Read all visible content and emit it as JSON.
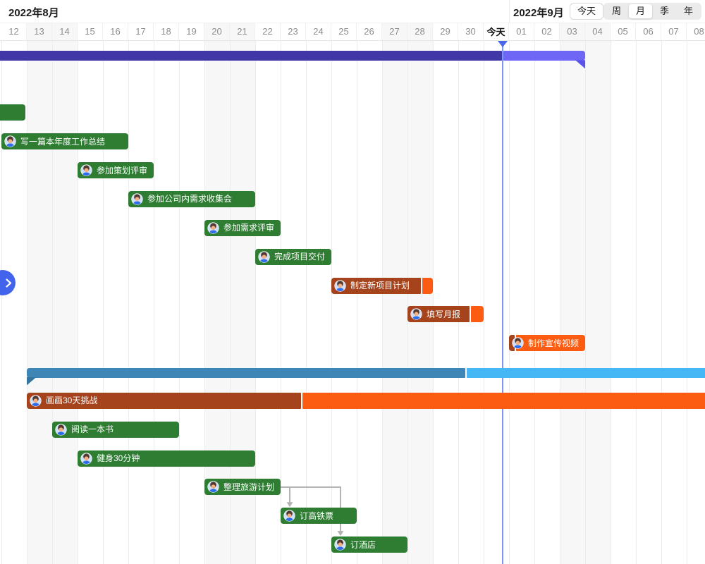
{
  "topbar": {
    "month_left": "2022年8月",
    "month_right": "2022年9月",
    "today_button": "今天",
    "views": [
      "周",
      "月",
      "季",
      "年"
    ],
    "view_keys": [
      "week",
      "month",
      "quarter",
      "year"
    ],
    "selected_view": "月"
  },
  "timeline": {
    "days": [
      "12",
      "13",
      "14",
      "15",
      "16",
      "17",
      "18",
      "19",
      "20",
      "21",
      "22",
      "23",
      "24",
      "25",
      "26",
      "27",
      "28",
      "29",
      "30",
      "今天",
      "01",
      "02",
      "03",
      "04",
      "05",
      "06",
      "07",
      "08"
    ],
    "weekend_days": [
      "13",
      "14",
      "20",
      "21",
      "27",
      "28",
      "03",
      "04"
    ],
    "today_label": "今天"
  },
  "colors": {
    "green": "#2E7D32",
    "rust": "#A4431C",
    "orange": "#FB5C11",
    "purple_dark": "#3F38A6",
    "purple_light": "#6E66F4",
    "purple_cap": "#5A52EE",
    "blue_dark": "#3E86B5",
    "blue_light": "#45B7F4",
    "blue_cap": "#36759E",
    "today_line": "#7E96F3",
    "today_caret": "#4A66EC",
    "link": "#B3B3B3",
    "toggle": "#4263EB"
  },
  "tasks": [
    {
      "label": "",
      "row": 0,
      "start": -1,
      "duration": 24,
      "type": "summary",
      "palette": "purple",
      "progress": 0.865,
      "cap": "right"
    },
    {
      "label": "",
      "row": 2,
      "start": -1.45,
      "duration": 2.4,
      "type": "task",
      "palette": "green"
    },
    {
      "label": "写一篇本年度工作总结",
      "row": 3,
      "start": 0,
      "duration": 5,
      "type": "task",
      "palette": "green"
    },
    {
      "label": "参加策划评审",
      "row": 4,
      "start": 3,
      "duration": 3,
      "type": "task",
      "palette": "green"
    },
    {
      "label": "参加公司内需求收集会",
      "row": 5,
      "start": 5,
      "duration": 5,
      "type": "task",
      "palette": "green"
    },
    {
      "label": "参加需求评审",
      "row": 6,
      "start": 8,
      "duration": 3,
      "type": "task",
      "palette": "green"
    },
    {
      "label": "完成项目交付",
      "row": 7,
      "start": 10,
      "duration": 3,
      "type": "task",
      "palette": "green"
    },
    {
      "label": "制定新项目计划",
      "row": 8,
      "start": 13,
      "duration": 4,
      "type": "task",
      "palette": "orange",
      "progress": 0.89
    },
    {
      "label": "填写月报",
      "row": 9,
      "start": 16,
      "duration": 3,
      "type": "task",
      "palette": "orange",
      "progress": 0.82
    },
    {
      "label": "制作宣传视频",
      "row": 10,
      "start": 20,
      "duration": 3,
      "type": "task",
      "palette": "orange",
      "progress": 0.085
    },
    {
      "label": "",
      "row": 11,
      "start": 1,
      "duration": 27.2,
      "type": "summary",
      "palette": "blue",
      "progress": 0.636,
      "cap": "left"
    },
    {
      "label": "画画30天挑战",
      "row": 12,
      "start": 1,
      "duration": 27.2,
      "type": "task",
      "palette": "orange",
      "progress": 0.398
    },
    {
      "label": "阅读一本书",
      "row": 13,
      "start": 2,
      "duration": 5,
      "type": "task",
      "palette": "green"
    },
    {
      "label": "健身30分钟",
      "row": 14,
      "start": 3,
      "duration": 7,
      "type": "task",
      "palette": "green"
    },
    {
      "label": "整理旅游计划",
      "row": 15,
      "start": 8,
      "duration": 3,
      "type": "task",
      "palette": "green"
    },
    {
      "label": "订高铁票",
      "row": 16,
      "start": 11,
      "duration": 3,
      "type": "task",
      "palette": "green"
    },
    {
      "label": "订酒店",
      "row": 17,
      "start": 13,
      "duration": 3,
      "type": "task",
      "palette": "green"
    }
  ],
  "links": [
    {
      "from": "整理旅游计划",
      "to": "订高铁票"
    },
    {
      "from": "整理旅游计划",
      "to": "订酒店"
    }
  ],
  "panel_toggle": {
    "icon": "chevron-right-icon"
  }
}
